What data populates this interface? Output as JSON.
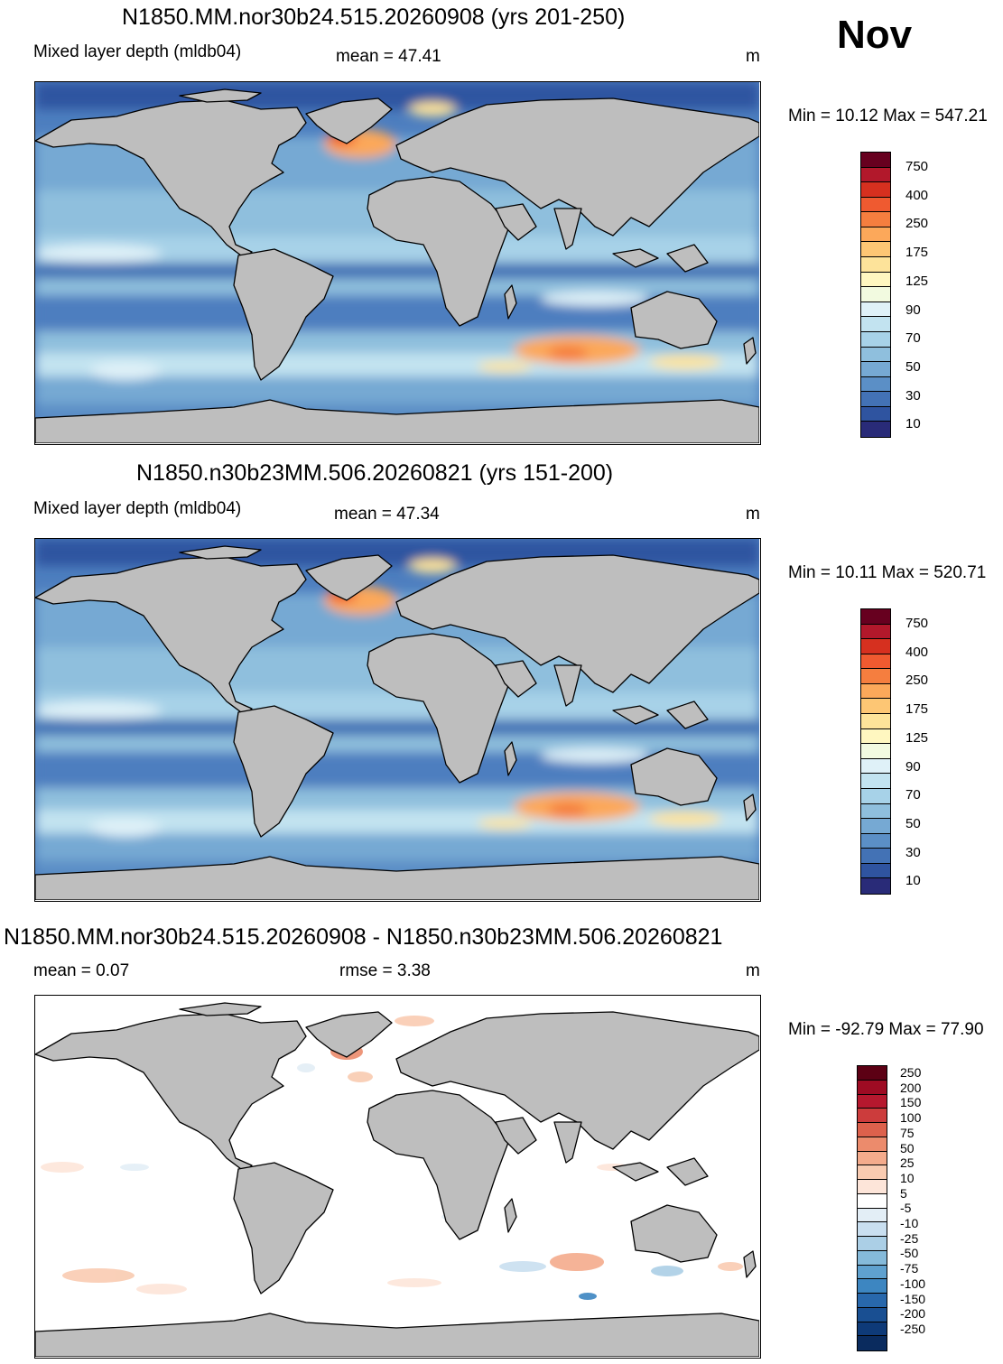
{
  "month": "Nov",
  "panels": [
    {
      "id": "case1",
      "title": "N1850.MM.nor30b24.515.20260908 (yrs 201-250)",
      "variable": "Mixed layer depth (mldb04)",
      "stat": "mean =  47.41",
      "units": "m",
      "minmax": "Min =  10.12 Max = 547.21"
    },
    {
      "id": "case2",
      "title": "N1850.n30b23MM.506.20260821 (yrs 151-200)",
      "variable": "Mixed layer depth (mldb04)",
      "stat": "mean =  47.34",
      "units": "m",
      "minmax": "Min =  10.11 Max = 520.71"
    },
    {
      "id": "diff",
      "title": "N1850.MM.nor30b24.515.20260908 - N1850.n30b23MM.506.20260821",
      "stat_mean": "mean =   0.07",
      "stat_rmse": "rmse =   3.38",
      "units": "m",
      "minmax": "Min = -92.79 Max =  77.90"
    }
  ],
  "colorbars": {
    "field": {
      "colors": [
        "#67001f",
        "#b2182b",
        "#d6301f",
        "#ef5a30",
        "#f57e3f",
        "#fca85a",
        "#fdc674",
        "#fde39a",
        "#fff7c0",
        "#f2fae0",
        "#dff1f8",
        "#c2e3f0",
        "#a7d2e8",
        "#8fbfdd",
        "#76a9d3",
        "#5b8fc6",
        "#4372b5",
        "#2f54a0",
        "#292b78"
      ],
      "labels": [
        "750",
        "400",
        "250",
        "175",
        "125",
        "90",
        "70",
        "50",
        "30",
        "10"
      ]
    },
    "diff": {
      "colors": [
        "#5c0014",
        "#9e0b23",
        "#b6182e",
        "#cc3c3c",
        "#dd614c",
        "#ec8b6c",
        "#f4ab8c",
        "#f9cbb1",
        "#fde5d9",
        "#ffffff",
        "#e3eef6",
        "#c9dff0",
        "#abcfe6",
        "#85bada",
        "#5fa1cf",
        "#3d86c1",
        "#2868ac",
        "#194f92",
        "#0e3a78",
        "#0a2b5e"
      ],
      "labels": [
        "250",
        "200",
        "150",
        "100",
        "75",
        "50",
        "25",
        "10",
        "5",
        "-5",
        "-10",
        "-25",
        "-50",
        "-75",
        "-100",
        "-150",
        "-200",
        "-250"
      ]
    }
  }
}
